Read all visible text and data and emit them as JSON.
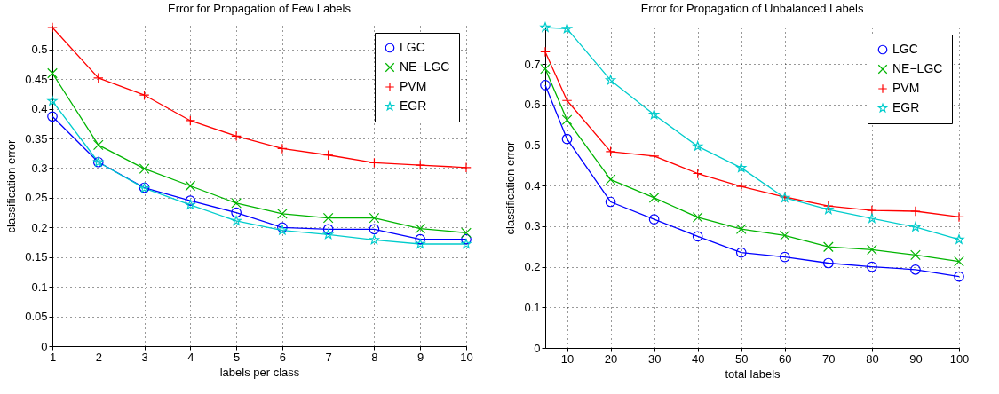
{
  "chart_data": [
    {
      "type": "line",
      "title": "Error for Propagation of Few Labels",
      "xlabel": "labels per class",
      "ylabel": "classification error",
      "x": [
        1,
        2,
        3,
        4,
        5,
        6,
        7,
        8,
        9,
        10
      ],
      "series": [
        {
          "name": "LGC",
          "color": "#0000ff",
          "marker": "circle",
          "values": [
            0.387,
            0.31,
            0.267,
            0.245,
            0.225,
            0.2,
            0.197,
            0.197,
            0.18,
            0.18
          ]
        },
        {
          "name": "NE−LGC",
          "color": "#00b400",
          "marker": "cross",
          "values": [
            0.46,
            0.339,
            0.299,
            0.27,
            0.241,
            0.223,
            0.216,
            0.216,
            0.198,
            0.191
          ]
        },
        {
          "name": "PVM",
          "color": "#ff0000",
          "marker": "plus",
          "values": [
            0.537,
            0.452,
            0.423,
            0.38,
            0.354,
            0.333,
            0.322,
            0.309,
            0.305,
            0.301
          ]
        },
        {
          "name": "EGR",
          "color": "#00cccc",
          "marker": "star",
          "values": [
            0.413,
            0.31,
            0.266,
            0.238,
            0.211,
            0.195,
            0.188,
            0.179,
            0.172,
            0.172
          ]
        }
      ],
      "xlim": [
        1,
        10
      ],
      "xticks": [
        1,
        2,
        3,
        4,
        5,
        6,
        7,
        8,
        9,
        10
      ],
      "ylim": [
        0,
        0.54
      ],
      "yticks": [
        0,
        0.05,
        0.1,
        0.15,
        0.2,
        0.25,
        0.3,
        0.35,
        0.4,
        0.45,
        0.5
      ],
      "grid": true,
      "legend": "top right",
      "line_style": "solid"
    },
    {
      "type": "line",
      "title": "Error for Propagation of Unbalanced Labels",
      "xlabel": "total labels",
      "ylabel": "classification error",
      "x": [
        5,
        10,
        20,
        30,
        40,
        50,
        60,
        70,
        80,
        90,
        100
      ],
      "series": [
        {
          "name": "LGC",
          "color": "#0000ff",
          "marker": "circle",
          "values": [
            0.648,
            0.515,
            0.36,
            0.317,
            0.275,
            0.235,
            0.224,
            0.209,
            0.2,
            0.193,
            0.176
          ]
        },
        {
          "name": "NE−LGC",
          "color": "#00b400",
          "marker": "cross",
          "values": [
            0.688,
            0.562,
            0.415,
            0.37,
            0.322,
            0.293,
            0.277,
            0.249,
            0.242,
            0.229,
            0.213
          ]
        },
        {
          "name": "PVM",
          "color": "#ff0000",
          "marker": "plus",
          "values": [
            0.73,
            0.61,
            0.484,
            0.473,
            0.43,
            0.398,
            0.372,
            0.35,
            0.339,
            0.337,
            0.323
          ]
        },
        {
          "name": "EGR",
          "color": "#00cccc",
          "marker": "star",
          "values": [
            0.79,
            0.787,
            0.66,
            0.575,
            0.497,
            0.444,
            0.37,
            0.341,
            0.319,
            0.298,
            0.267
          ]
        }
      ],
      "xlim": [
        5,
        100
      ],
      "xticks": [
        10,
        20,
        30,
        40,
        50,
        60,
        70,
        80,
        90,
        100
      ],
      "ylim": [
        0,
        0.79
      ],
      "yticks": [
        0,
        0.1,
        0.2,
        0.3,
        0.4,
        0.5,
        0.6,
        0.7
      ],
      "grid": true,
      "legend": "top right",
      "line_style": "solid"
    }
  ]
}
